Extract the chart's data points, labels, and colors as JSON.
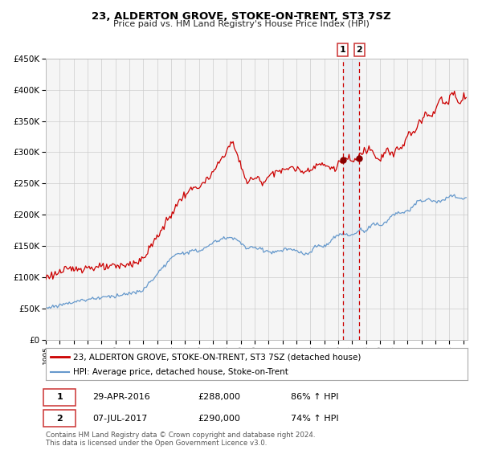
{
  "title": "23, ALDERTON GROVE, STOKE-ON-TRENT, ST3 7SZ",
  "subtitle": "Price paid vs. HM Land Registry's House Price Index (HPI)",
  "ylim": [
    0,
    450000
  ],
  "ytick_vals": [
    0,
    50000,
    100000,
    150000,
    200000,
    250000,
    300000,
    350000,
    400000,
    450000
  ],
  "ytick_labels": [
    "£0",
    "£50K",
    "£100K",
    "£150K",
    "£200K",
    "£250K",
    "£300K",
    "£350K",
    "£400K",
    "£450K"
  ],
  "xlim_start": 1995.0,
  "xlim_end": 2025.3,
  "red_color": "#cc0000",
  "blue_color": "#6699cc",
  "marker_color": "#880000",
  "bg_color": "#f5f5f5",
  "grid_color": "#cccccc",
  "sale1_x": 2016.33,
  "sale1_y": 288000,
  "sale2_x": 2017.52,
  "sale2_y": 290000,
  "vline1_x": 2016.33,
  "vline2_x": 2017.52,
  "legend_line1": "23, ALDERTON GROVE, STOKE-ON-TRENT, ST3 7SZ (detached house)",
  "legend_line2": "HPI: Average price, detached house, Stoke-on-Trent",
  "table_row1_num": "1",
  "table_row1_date": "29-APR-2016",
  "table_row1_price": "£288,000",
  "table_row1_hpi": "86% ↑ HPI",
  "table_row2_num": "2",
  "table_row2_date": "07-JUL-2017",
  "table_row2_price": "£290,000",
  "table_row2_hpi": "74% ↑ HPI",
  "footer_line1": "Contains HM Land Registry data © Crown copyright and database right 2024.",
  "footer_line2": "This data is licensed under the Open Government Licence v3.0."
}
